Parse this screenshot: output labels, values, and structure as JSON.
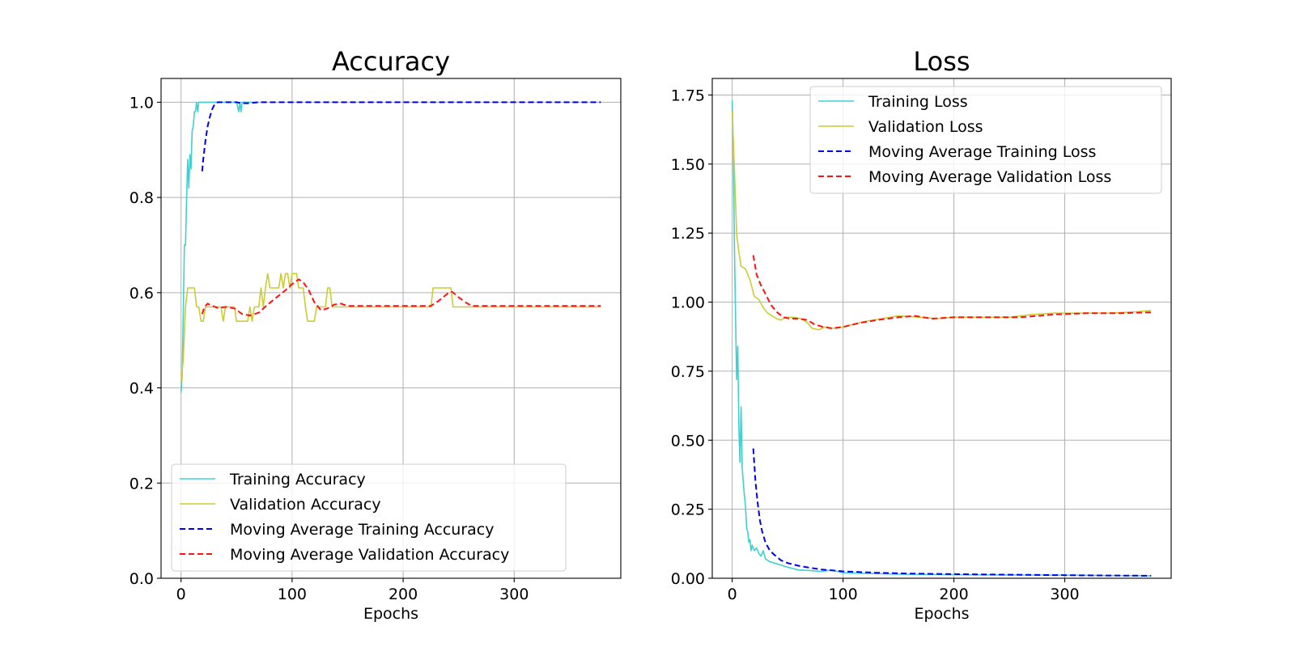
{
  "chart_data": [
    {
      "type": "line",
      "title": "Accuracy",
      "xlabel": "Epochs",
      "ylabel": "",
      "xlim": [
        -18,
        396
      ],
      "ylim": [
        0.0,
        1.05
      ],
      "xticks": [
        0,
        100,
        200,
        300
      ],
      "yticks": [
        0.0,
        0.2,
        0.4,
        0.6,
        0.8,
        1.0
      ],
      "ytick_labels": [
        "0.0",
        "0.2",
        "0.4",
        "0.6",
        "0.8",
        "1.0"
      ],
      "grid": true,
      "legend_position": "lower-left",
      "series": [
        {
          "name": "Training Accuracy",
          "color": "#40d0d0",
          "dash": false,
          "points": [
            [
              0,
              0.39
            ],
            [
              1,
              0.43
            ],
            [
              2,
              0.55
            ],
            [
              3,
              0.7
            ],
            [
              4,
              0.7
            ],
            [
              5,
              0.8
            ],
            [
              6,
              0.88
            ],
            [
              7,
              0.82
            ],
            [
              8,
              0.89
            ],
            [
              9,
              0.86
            ],
            [
              10,
              0.94
            ],
            [
              11,
              0.95
            ],
            [
              12,
              0.98
            ],
            [
              13,
              0.98
            ],
            [
              14,
              1.0
            ],
            [
              15,
              0.98
            ],
            [
              16,
              1.0
            ],
            [
              20,
              1.0
            ],
            [
              30,
              1.0
            ],
            [
              40,
              1.0
            ],
            [
              50,
              1.0
            ],
            [
              52,
              0.98
            ],
            [
              53,
              1.0
            ],
            [
              54,
              0.98
            ],
            [
              55,
              1.0
            ],
            [
              60,
              1.0
            ],
            [
              70,
              1.0
            ]
          ]
        },
        {
          "name": "Validation Accuracy",
          "color": "#cccc33",
          "dash": false,
          "points": [
            [
              0,
              0.41
            ],
            [
              2,
              0.46
            ],
            [
              4,
              0.57
            ],
            [
              6,
              0.61
            ],
            [
              12,
              0.61
            ],
            [
              14,
              0.57
            ],
            [
              16,
              0.57
            ],
            [
              18,
              0.54
            ],
            [
              20,
              0.54
            ],
            [
              22,
              0.57
            ],
            [
              28,
              0.57
            ],
            [
              30,
              0.57
            ],
            [
              36,
              0.57
            ],
            [
              38,
              0.54
            ],
            [
              40,
              0.57
            ],
            [
              48,
              0.57
            ],
            [
              50,
              0.54
            ],
            [
              60,
              0.54
            ],
            [
              62,
              0.57
            ],
            [
              64,
              0.54
            ],
            [
              66,
              0.57
            ],
            [
              70,
              0.57
            ],
            [
              72,
              0.61
            ],
            [
              74,
              0.57
            ],
            [
              76,
              0.61
            ],
            [
              78,
              0.64
            ],
            [
              80,
              0.61
            ],
            [
              88,
              0.61
            ],
            [
              90,
              0.64
            ],
            [
              92,
              0.61
            ],
            [
              94,
              0.64
            ],
            [
              96,
              0.64
            ],
            [
              98,
              0.61
            ],
            [
              100,
              0.64
            ],
            [
              104,
              0.64
            ],
            [
              106,
              0.61
            ],
            [
              110,
              0.61
            ],
            [
              112,
              0.57
            ],
            [
              114,
              0.54
            ],
            [
              120,
              0.54
            ],
            [
              122,
              0.57
            ],
            [
              130,
              0.57
            ],
            [
              132,
              0.61
            ],
            [
              134,
              0.61
            ],
            [
              136,
              0.57
            ],
            [
              140,
              0.57
            ],
            [
              225,
              0.57
            ],
            [
              227,
              0.61
            ],
            [
              243,
              0.61
            ],
            [
              245,
              0.57
            ],
            [
              378,
              0.57
            ]
          ]
        },
        {
          "name": "Moving Average Training Accuracy",
          "color": "#0000ee",
          "dash": true,
          "points": [
            [
              19,
              0.855
            ],
            [
              20,
              0.88
            ],
            [
              22,
              0.92
            ],
            [
              24,
              0.95
            ],
            [
              26,
              0.97
            ],
            [
              28,
              0.985
            ],
            [
              30,
              0.995
            ],
            [
              33,
              1.0
            ],
            [
              50,
              1.0
            ],
            [
              54,
              0.998
            ],
            [
              62,
              0.998
            ],
            [
              70,
              1.0
            ],
            [
              378,
              1.0
            ]
          ]
        },
        {
          "name": "Moving Average Validation Accuracy",
          "color": "#ff1111",
          "dash": true,
          "points": [
            [
              19,
              0.555
            ],
            [
              21,
              0.57
            ],
            [
              24,
              0.577
            ],
            [
              27,
              0.573
            ],
            [
              33,
              0.568
            ],
            [
              40,
              0.57
            ],
            [
              48,
              0.567
            ],
            [
              55,
              0.555
            ],
            [
              62,
              0.552
            ],
            [
              70,
              0.558
            ],
            [
              78,
              0.575
            ],
            [
              86,
              0.59
            ],
            [
              94,
              0.605
            ],
            [
              100,
              0.618
            ],
            [
              106,
              0.628
            ],
            [
              110,
              0.622
            ],
            [
              115,
              0.605
            ],
            [
              120,
              0.58
            ],
            [
              126,
              0.563
            ],
            [
              132,
              0.567
            ],
            [
              138,
              0.575
            ],
            [
              144,
              0.577
            ],
            [
              150,
              0.572
            ],
            [
              225,
              0.572
            ],
            [
              232,
              0.583
            ],
            [
              240,
              0.598
            ],
            [
              244,
              0.602
            ],
            [
              250,
              0.59
            ],
            [
              258,
              0.577
            ],
            [
              262,
              0.572
            ],
            [
              378,
              0.572
            ]
          ]
        }
      ]
    },
    {
      "type": "line",
      "title": "Loss",
      "xlabel": "Epochs",
      "ylabel": "",
      "xlim": [
        -18,
        396
      ],
      "ylim": [
        0.0,
        1.81
      ],
      "xticks": [
        0,
        100,
        200,
        300
      ],
      "yticks": [
        0.0,
        0.25,
        0.5,
        0.75,
        1.0,
        1.25,
        1.5,
        1.75
      ],
      "ytick_labels": [
        "0.00",
        "0.25",
        "0.50",
        "0.75",
        "1.00",
        "1.25",
        "1.50",
        "1.75"
      ],
      "grid": true,
      "legend_position": "upper-right",
      "series": [
        {
          "name": "Training Loss",
          "color": "#40d0d0",
          "dash": false,
          "points": [
            [
              0,
              1.73
            ],
            [
              1,
              1.55
            ],
            [
              2,
              1.2
            ],
            [
              3,
              0.95
            ],
            [
              4,
              0.72
            ],
            [
              5,
              0.84
            ],
            [
              6,
              0.55
            ],
            [
              7,
              0.42
            ],
            [
              8,
              0.62
            ],
            [
              9,
              0.4
            ],
            [
              10,
              0.35
            ],
            [
              11,
              0.3
            ],
            [
              12,
              0.26
            ],
            [
              13,
              0.18
            ],
            [
              14,
              0.17
            ],
            [
              15,
              0.13
            ],
            [
              16,
              0.14
            ],
            [
              17,
              0.1
            ],
            [
              18,
              0.12
            ],
            [
              20,
              0.1
            ],
            [
              22,
              0.11
            ],
            [
              24,
              0.09
            ],
            [
              26,
              0.08
            ],
            [
              28,
              0.1
            ],
            [
              30,
              0.07
            ],
            [
              34,
              0.06
            ],
            [
              38,
              0.055
            ],
            [
              42,
              0.05
            ],
            [
              46,
              0.045
            ],
            [
              50,
              0.04
            ],
            [
              55,
              0.035
            ],
            [
              60,
              0.03
            ],
            [
              70,
              0.028
            ],
            [
              80,
              0.025
            ],
            [
              90,
              0.03
            ],
            [
              100,
              0.02
            ],
            [
              120,
              0.018
            ],
            [
              150,
              0.015
            ],
            [
              200,
              0.013
            ],
            [
              250,
              0.012
            ],
            [
              300,
              0.011
            ],
            [
              378,
              0.009
            ]
          ]
        },
        {
          "name": "Validation Loss",
          "color": "#cccc33",
          "dash": false,
          "points": [
            [
              0,
              1.69
            ],
            [
              2,
              1.48
            ],
            [
              4,
              1.25
            ],
            [
              6,
              1.18
            ],
            [
              8,
              1.13
            ],
            [
              12,
              1.12
            ],
            [
              16,
              1.08
            ],
            [
              20,
              1.02
            ],
            [
              24,
              1.01
            ],
            [
              28,
              0.98
            ],
            [
              32,
              0.96
            ],
            [
              36,
              0.95
            ],
            [
              40,
              0.94
            ],
            [
              44,
              0.935
            ],
            [
              48,
              0.945
            ],
            [
              52,
              0.945
            ],
            [
              56,
              0.945
            ],
            [
              62,
              0.94
            ],
            [
              68,
              0.925
            ],
            [
              72,
              0.905
            ],
            [
              78,
              0.9
            ],
            [
              84,
              0.91
            ],
            [
              92,
              0.905
            ],
            [
              100,
              0.91
            ],
            [
              110,
              0.92
            ],
            [
              120,
              0.93
            ],
            [
              135,
              0.94
            ],
            [
              150,
              0.95
            ],
            [
              170,
              0.945
            ],
            [
              185,
              0.94
            ],
            [
              200,
              0.945
            ],
            [
              230,
              0.945
            ],
            [
              250,
              0.945
            ],
            [
              270,
              0.955
            ],
            [
              290,
              0.96
            ],
            [
              310,
              0.96
            ],
            [
              340,
              0.96
            ],
            [
              365,
              0.965
            ],
            [
              378,
              0.97
            ]
          ]
        },
        {
          "name": "Moving Average Training Loss",
          "color": "#0000ee",
          "dash": true,
          "points": [
            [
              19,
              0.47
            ],
            [
              21,
              0.35
            ],
            [
              23,
              0.27
            ],
            [
              25,
              0.21
            ],
            [
              27,
              0.17
            ],
            [
              30,
              0.13
            ],
            [
              34,
              0.1
            ],
            [
              38,
              0.085
            ],
            [
              44,
              0.065
            ],
            [
              50,
              0.055
            ],
            [
              60,
              0.045
            ],
            [
              70,
              0.038
            ],
            [
              80,
              0.032
            ],
            [
              100,
              0.025
            ],
            [
              130,
              0.02
            ],
            [
              160,
              0.017
            ],
            [
              200,
              0.015
            ],
            [
              250,
              0.013
            ],
            [
              300,
              0.011
            ],
            [
              340,
              0.01
            ],
            [
              378,
              0.009
            ]
          ]
        },
        {
          "name": "Moving Average Validation Loss",
          "color": "#ff1111",
          "dash": true,
          "points": [
            [
              19,
              1.17
            ],
            [
              22,
              1.1
            ],
            [
              26,
              1.06
            ],
            [
              30,
              1.03
            ],
            [
              35,
              0.99
            ],
            [
              40,
              0.965
            ],
            [
              46,
              0.945
            ],
            [
              52,
              0.94
            ],
            [
              60,
              0.94
            ],
            [
              68,
              0.935
            ],
            [
              74,
              0.92
            ],
            [
              82,
              0.91
            ],
            [
              90,
              0.905
            ],
            [
              100,
              0.91
            ],
            [
              115,
              0.925
            ],
            [
              130,
              0.935
            ],
            [
              150,
              0.945
            ],
            [
              165,
              0.95
            ],
            [
              180,
              0.94
            ],
            [
              200,
              0.945
            ],
            [
              230,
              0.945
            ],
            [
              260,
              0.945
            ],
            [
              290,
              0.955
            ],
            [
              320,
              0.96
            ],
            [
              350,
              0.96
            ],
            [
              378,
              0.963
            ]
          ]
        }
      ]
    }
  ]
}
